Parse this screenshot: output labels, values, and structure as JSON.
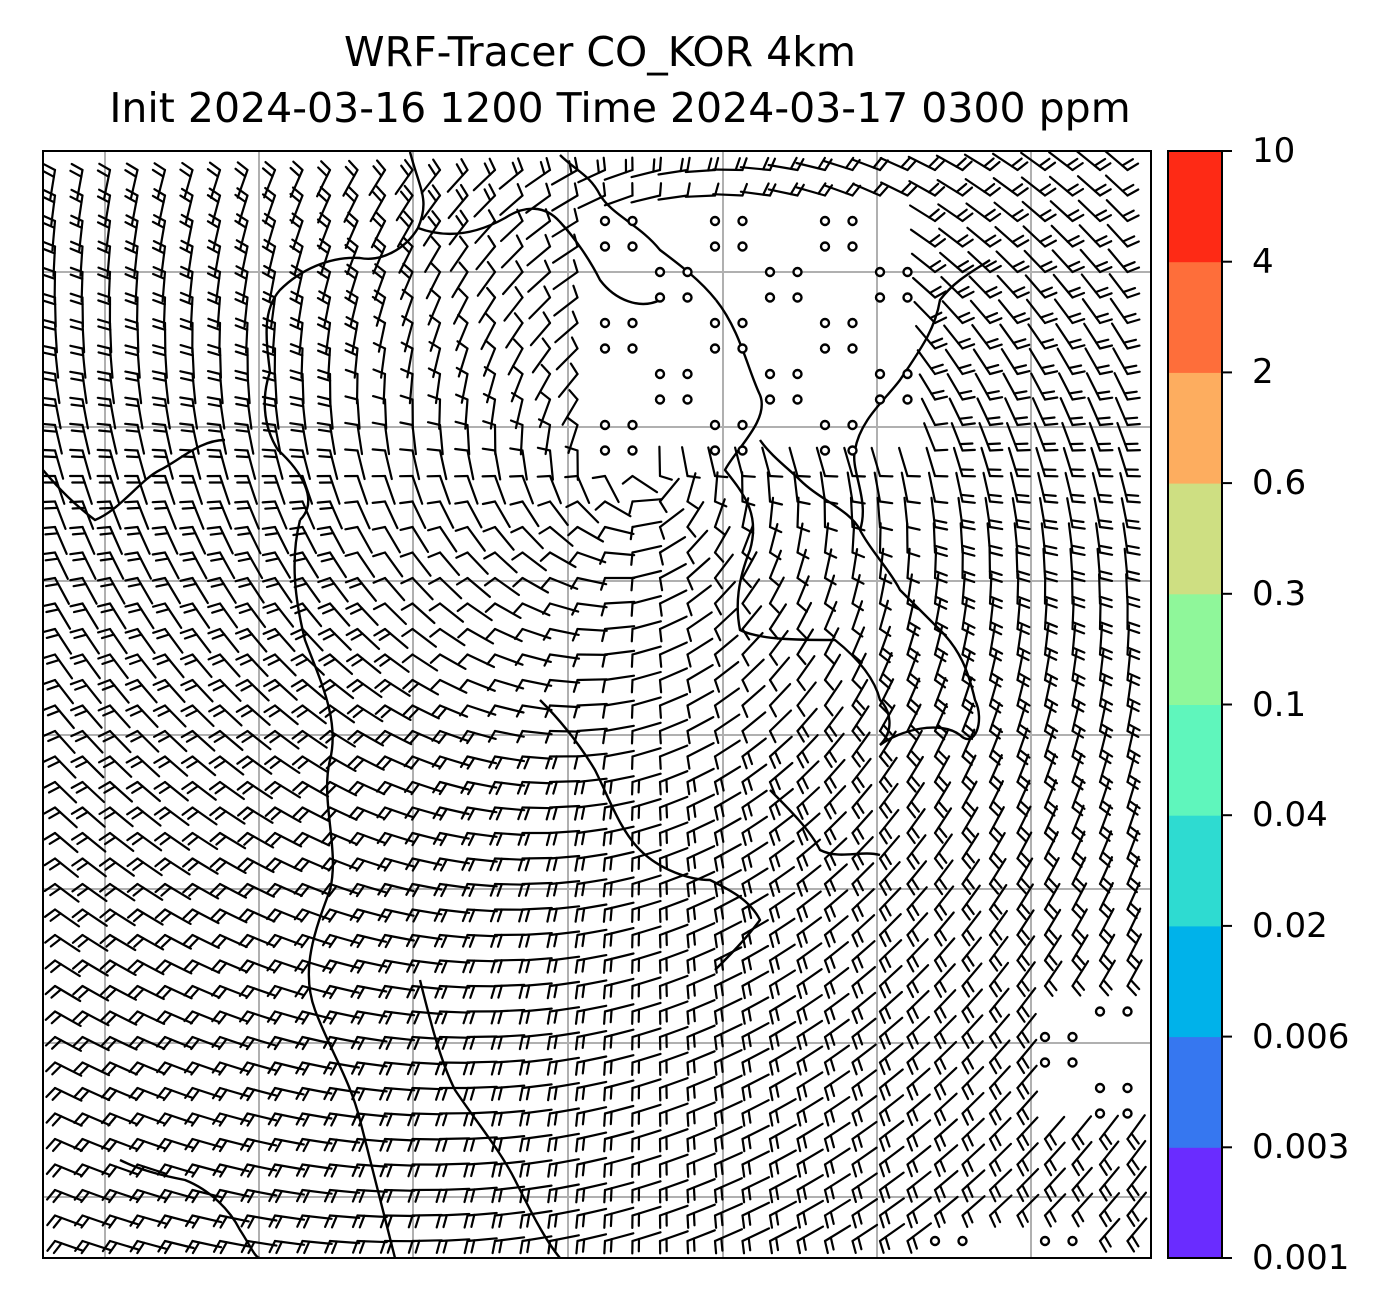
{
  "title": {
    "line1": "WRF-Tracer CO_KOR 4km",
    "line2": "Init 2024-03-16 1200 Time 2024-03-17 0300 ppm"
  },
  "colorbar": {
    "levels": [
      {
        "label": "0.001",
        "color": "#6a2cff"
      },
      {
        "label": "0.003",
        "color": "#3677f0"
      },
      {
        "label": "0.006",
        "color": "#00b2ea"
      },
      {
        "label": "0.02",
        "color": "#2edbd1"
      },
      {
        "label": "0.04",
        "color": "#5ff6bc"
      },
      {
        "label": "0.1",
        "color": "#8ff79a"
      },
      {
        "label": "0.3",
        "color": "#cedf82"
      },
      {
        "label": "0.6",
        "color": "#fdad5f"
      },
      {
        "label": "2",
        "color": "#fe6e3a"
      },
      {
        "label": "4",
        "color": "#fe2a15"
      },
      {
        "label": "10",
        "color": ""
      }
    ]
  },
  "map": {
    "gridlines": true,
    "coastlines": true,
    "wind_barbs": "cyclonic circulation centered over the Yellow Sea / Korean Peninsula",
    "calm_markers": "open circles where wind speed is calm"
  }
}
